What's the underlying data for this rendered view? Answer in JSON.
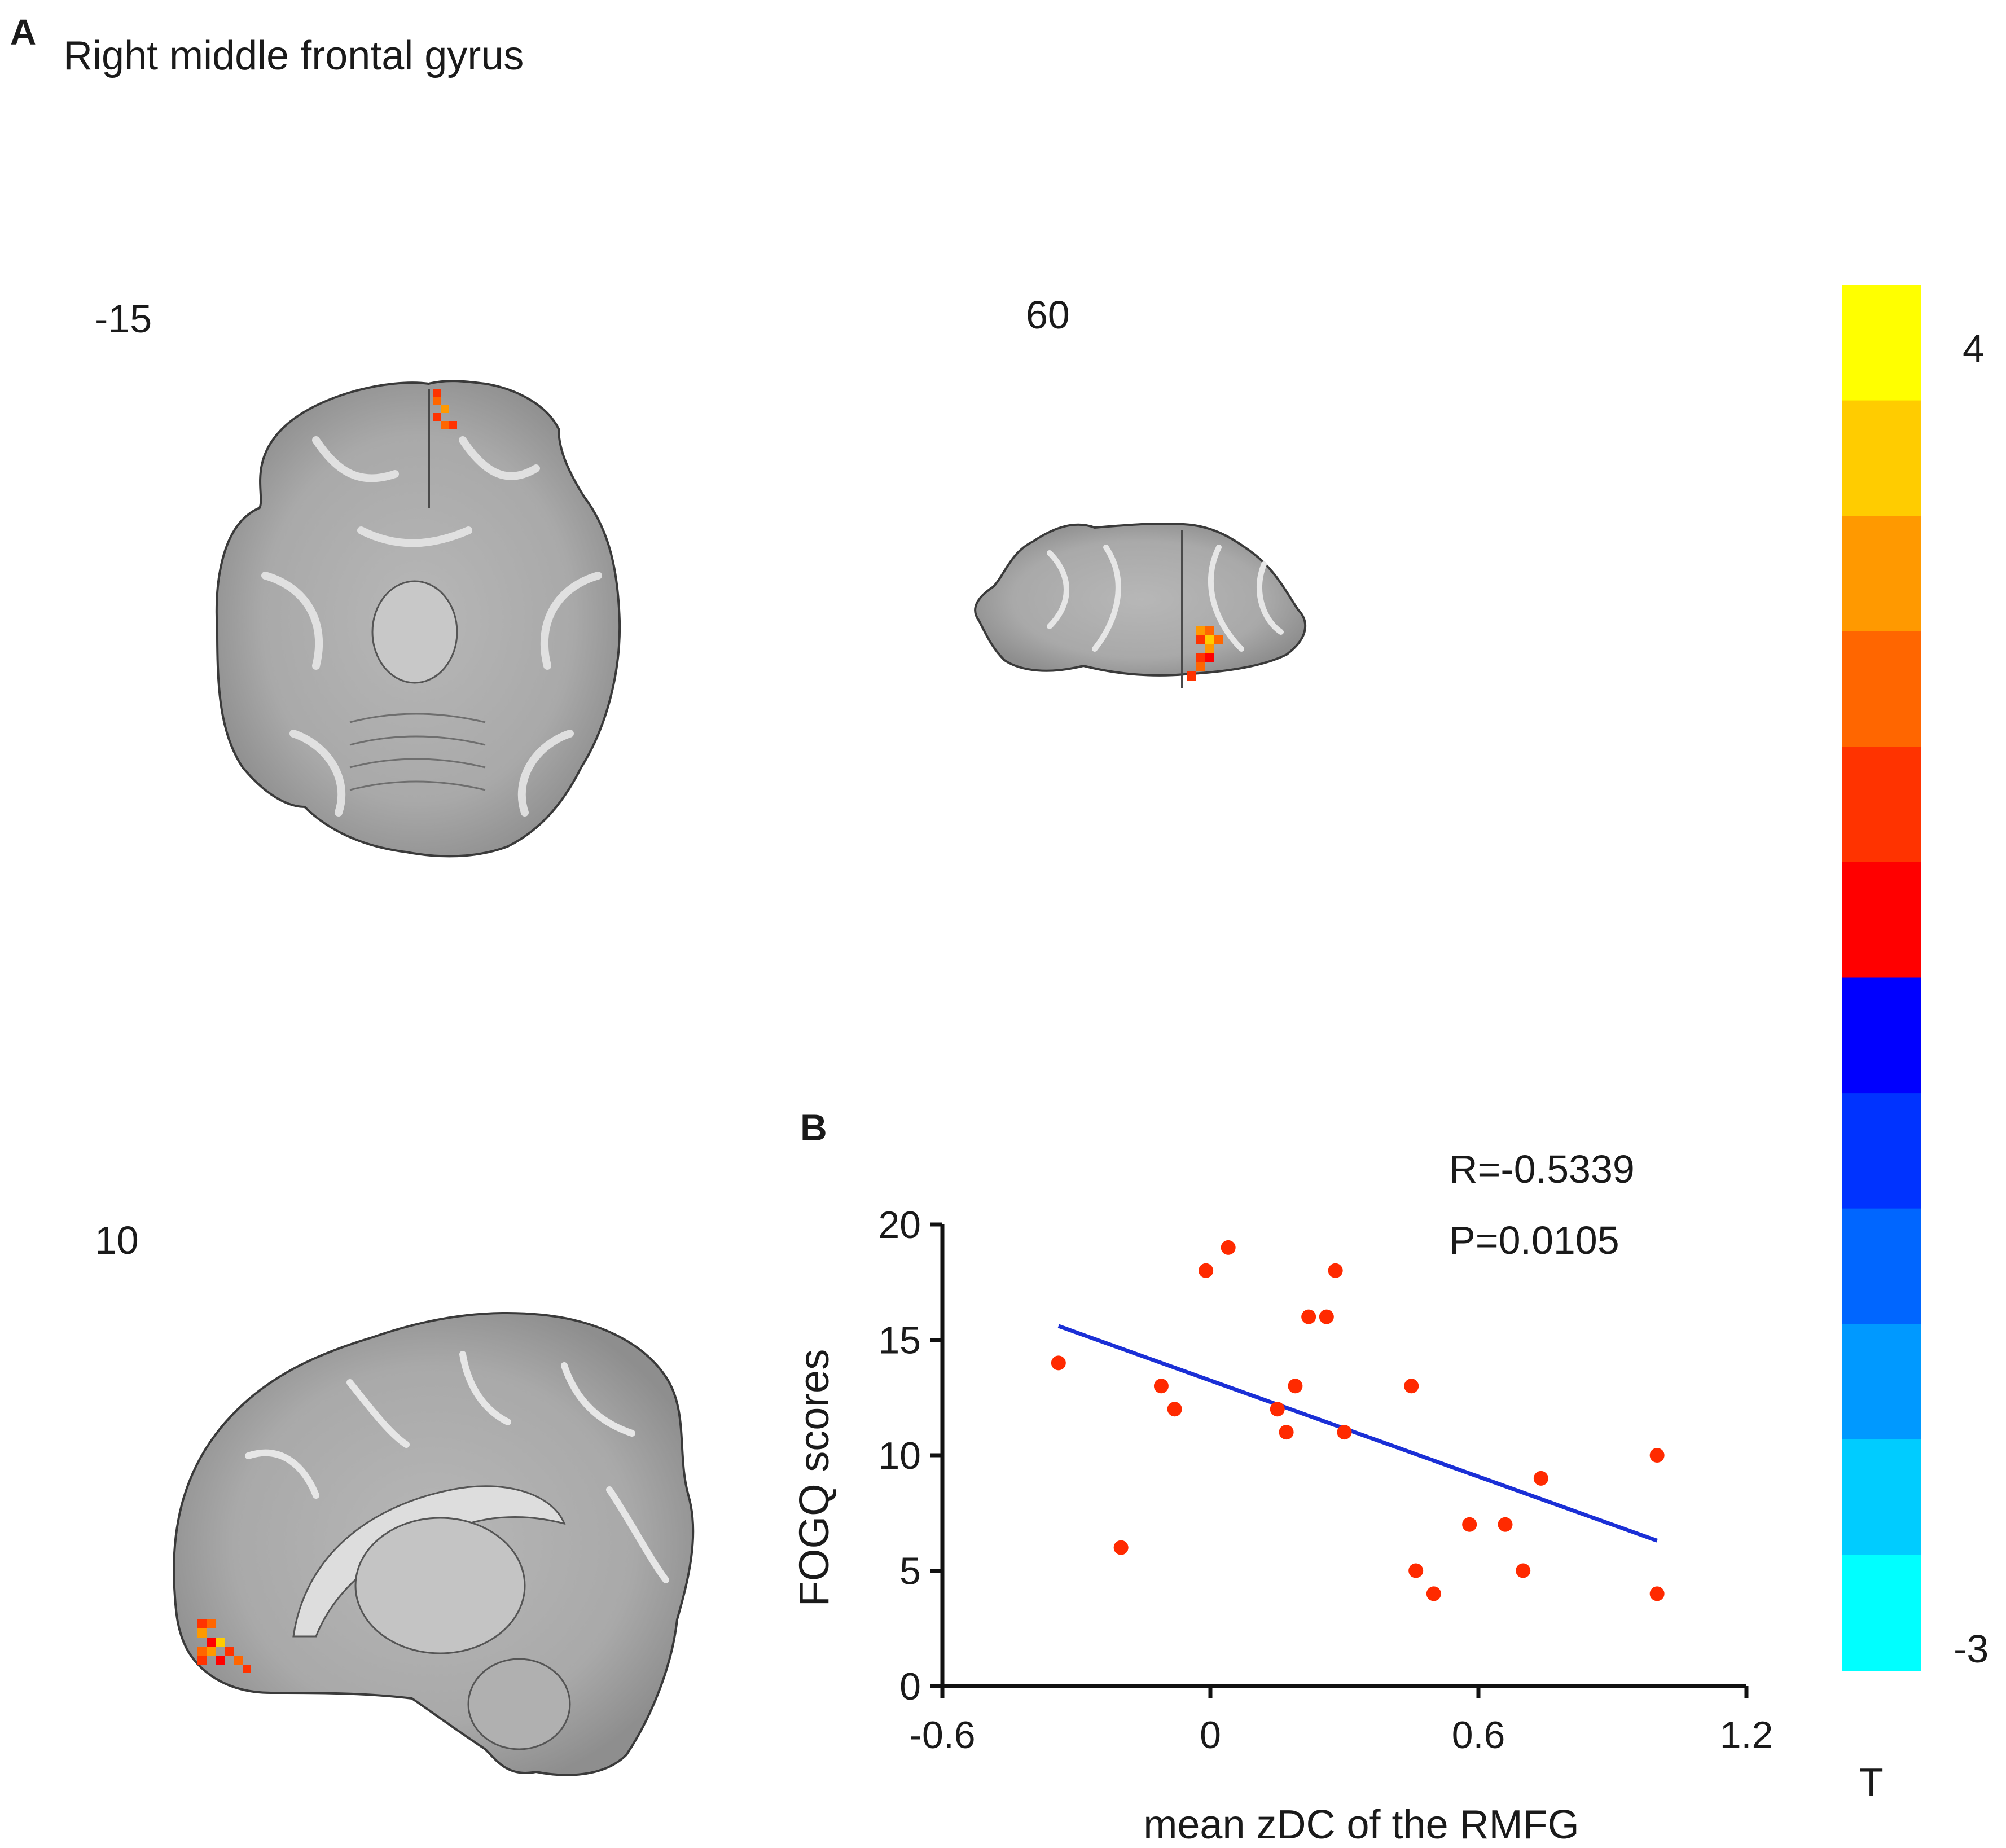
{
  "panel_a": {
    "letter": "A",
    "title": "Right middle frontal gyrus",
    "slices": [
      {
        "label": "-15",
        "view": "axial"
      },
      {
        "label": "60",
        "view": "coronal"
      },
      {
        "label": "10",
        "view": "sagittal"
      }
    ]
  },
  "colorbar": {
    "max_label": "4",
    "min_label": "-3",
    "title": "T",
    "colors": [
      "#ffff00",
      "#ffcc00",
      "#ff9900",
      "#ff6600",
      "#ff3300",
      "#ff0000",
      "#0000ff",
      "#0033ff",
      "#0066ff",
      "#0099ff",
      "#00ccff",
      "#00ffff"
    ]
  },
  "panel_b": {
    "letter": "B",
    "r_text": "R=-0.5339",
    "p_text": "P=0.0105"
  },
  "chart_data": {
    "type": "scatter",
    "xlabel": "mean zDC of the RMFG",
    "ylabel": "FOGQ scores",
    "xlim": [
      -0.6,
      1.2
    ],
    "ylim": [
      0,
      20
    ],
    "xticks": [
      -0.6,
      0,
      0.6,
      1.2
    ],
    "xtick_labels": [
      "-0.6",
      "0",
      "0.6",
      "1.2"
    ],
    "yticks": [
      0,
      5,
      10,
      15,
      20
    ],
    "ytick_labels": [
      "0",
      "5",
      "10",
      "15",
      "20"
    ],
    "point_color": "#ff2a00",
    "line_color": "#1a2fd6",
    "points": [
      {
        "x": -0.34,
        "y": 14
      },
      {
        "x": -0.2,
        "y": 6
      },
      {
        "x": -0.11,
        "y": 13
      },
      {
        "x": -0.08,
        "y": 12
      },
      {
        "x": -0.01,
        "y": 18
      },
      {
        "x": 0.04,
        "y": 19
      },
      {
        "x": 0.15,
        "y": 12
      },
      {
        "x": 0.17,
        "y": 11
      },
      {
        "x": 0.19,
        "y": 13
      },
      {
        "x": 0.22,
        "y": 16
      },
      {
        "x": 0.26,
        "y": 16
      },
      {
        "x": 0.28,
        "y": 18
      },
      {
        "x": 0.3,
        "y": 11
      },
      {
        "x": 0.45,
        "y": 13
      },
      {
        "x": 0.46,
        "y": 5
      },
      {
        "x": 0.5,
        "y": 4
      },
      {
        "x": 0.58,
        "y": 7
      },
      {
        "x": 0.66,
        "y": 7
      },
      {
        "x": 0.7,
        "y": 5
      },
      {
        "x": 0.74,
        "y": 9
      },
      {
        "x": 1.0,
        "y": 10
      },
      {
        "x": 1.0,
        "y": 4
      }
    ],
    "regression_line": [
      {
        "x": -0.34,
        "y": 15.6
      },
      {
        "x": 1.0,
        "y": 6.3
      }
    ]
  }
}
